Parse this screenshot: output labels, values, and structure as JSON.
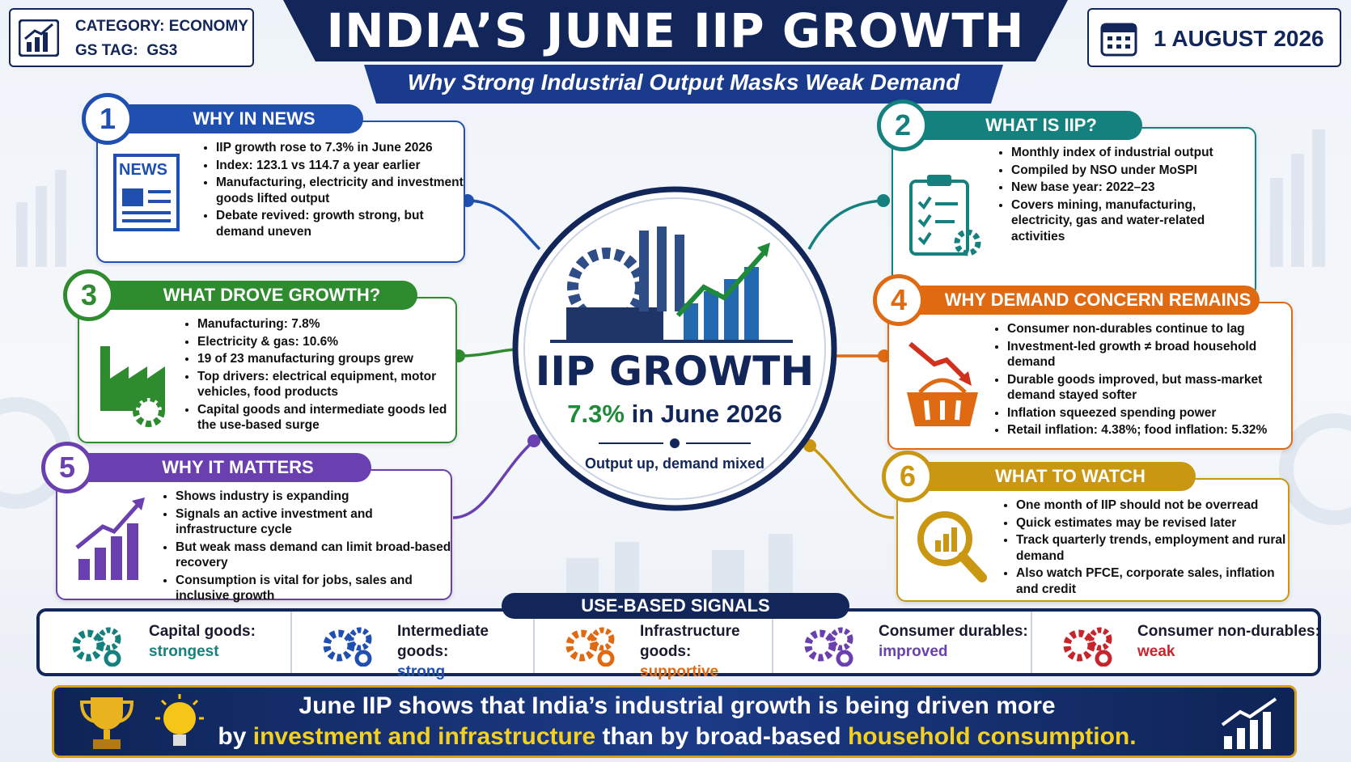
{
  "header": {
    "category_label": "CATEGORY:",
    "category": "ECONOMY",
    "tag_label": "GS TAG:",
    "tag": "GS3",
    "title": "INDIA’S JUNE IIP GROWTH",
    "subtitle": "Why Strong Industrial Output Masks Weak Demand",
    "date": "1 AUGUST 2026"
  },
  "sections": [
    {
      "number": "1",
      "title": "WHY IN NEWS",
      "icon_label": "NEWS",
      "bullets": [
        "IIP growth rose to 7.3% in June 2026",
        "Index: 123.1 vs 114.7 a year earlier",
        "Manufacturing, electricity and investment goods lifted output",
        "Debate revived: growth strong, but demand uneven"
      ]
    },
    {
      "number": "2",
      "title": "WHAT IS IIP?",
      "bullets": [
        "Monthly index of industrial output",
        "Compiled by NSO under MoSPI",
        "New base year: 2022–23",
        "Covers mining, manufacturing, electricity, gas and water-related activities"
      ]
    },
    {
      "number": "3",
      "title": "WHAT DROVE GROWTH?",
      "bullets": [
        "Manufacturing: 7.8%",
        "Electricity & gas: 10.6%",
        "19 of 23 manufacturing groups grew",
        "Top drivers: electrical equipment, motor vehicles, food products",
        "Capital goods and intermediate goods led the use-based surge"
      ]
    },
    {
      "number": "4",
      "title": "WHY DEMAND CONCERN REMAINS",
      "bullets": [
        "Consumer non-durables continue to lag",
        "Investment-led growth ≠ broad household demand",
        "Durable goods improved, but mass-market demand stayed softer",
        "Inflation squeezed spending power",
        "Retail inflation: 4.38%; food inflation: 5.32%"
      ]
    },
    {
      "number": "5",
      "title": "WHY IT MATTERS",
      "bullets": [
        "Shows industry is expanding",
        "Signals an active investment and infrastructure cycle",
        "But weak mass demand can limit broad-based recovery",
        "Consumption is vital for jobs, sales and inclusive growth"
      ]
    },
    {
      "number": "6",
      "title": "WHAT TO WATCH",
      "bullets": [
        "One month of IIP should not be overread",
        "Quick estimates may be revised later",
        "Track quarterly trends, employment and rural demand",
        "Also watch PFCE, corporate sales, inflation and credit"
      ]
    }
  ],
  "center": {
    "title": "IIP GROWTH",
    "value": "7.3%",
    "period": "in June 2026",
    "caption": "Output up, demand mixed"
  },
  "signals": {
    "title": "USE-BASED SIGNALS",
    "items": [
      {
        "label": "Capital goods:",
        "status": "strongest"
      },
      {
        "label": "Intermediate goods:",
        "status": "strong"
      },
      {
        "label": "Infrastructure goods:",
        "status": "supportive"
      },
      {
        "label": "Consumer durables:",
        "status": "improved"
      },
      {
        "label": "Consumer non-durables:",
        "status": "weak"
      }
    ]
  },
  "footer": {
    "line1": "June IIP shows that India’s industrial growth is being driven more",
    "lead": "by",
    "highlight1": "investment and infrastructure",
    "middle": "than by broad-based",
    "highlight2": "household consumption."
  }
}
